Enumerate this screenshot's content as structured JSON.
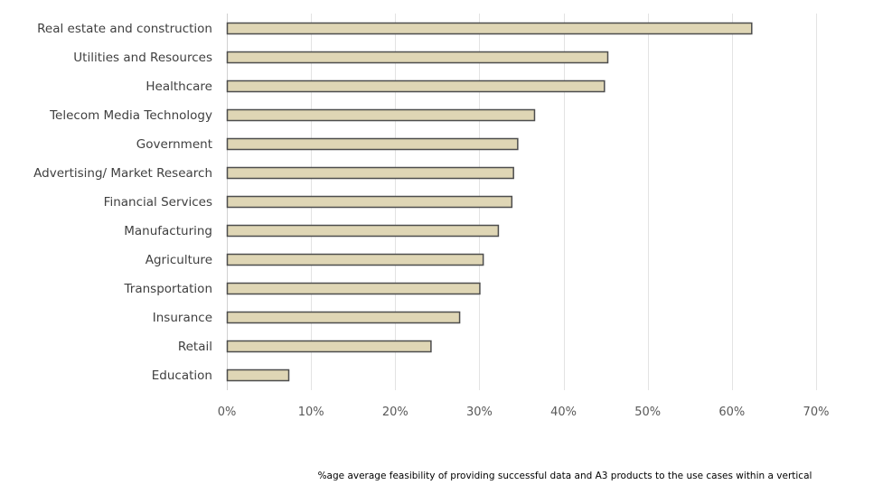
{
  "chart_data": {
    "type": "bar",
    "orientation": "horizontal",
    "title": "",
    "categories": [
      "Real estate and construction",
      "Utilities and Resources",
      "Healthcare",
      "Telecom Media Technology",
      "Government",
      "Advertising/ Market Research",
      "Financial Services",
      "Manufacturing",
      "Agriculture",
      "Transportation",
      "Insurance",
      "Retail",
      "Education"
    ],
    "values": [
      62.3,
      45.2,
      44.8,
      36.5,
      34.5,
      34.0,
      33.8,
      32.2,
      30.4,
      30.0,
      27.6,
      24.2,
      7.3
    ],
    "value_unit": "%",
    "xlabel": "%age average feasibility of providing successful data and A3 products to the use cases within a vertical",
    "ylabel": "",
    "xlim": [
      0,
      70
    ],
    "xticks": [
      0,
      10,
      20,
      30,
      40,
      50,
      60,
      70
    ],
    "xtick_labels": [
      "0%",
      "10%",
      "20%",
      "30%",
      "40%",
      "50%",
      "60%",
      "70%"
    ],
    "grid": "vertical",
    "legend": "none",
    "colors": {
      "bar_fill": "#DFD6B5",
      "bar_stroke": "#4D4D4D",
      "grid": "#E3E3E3"
    }
  }
}
